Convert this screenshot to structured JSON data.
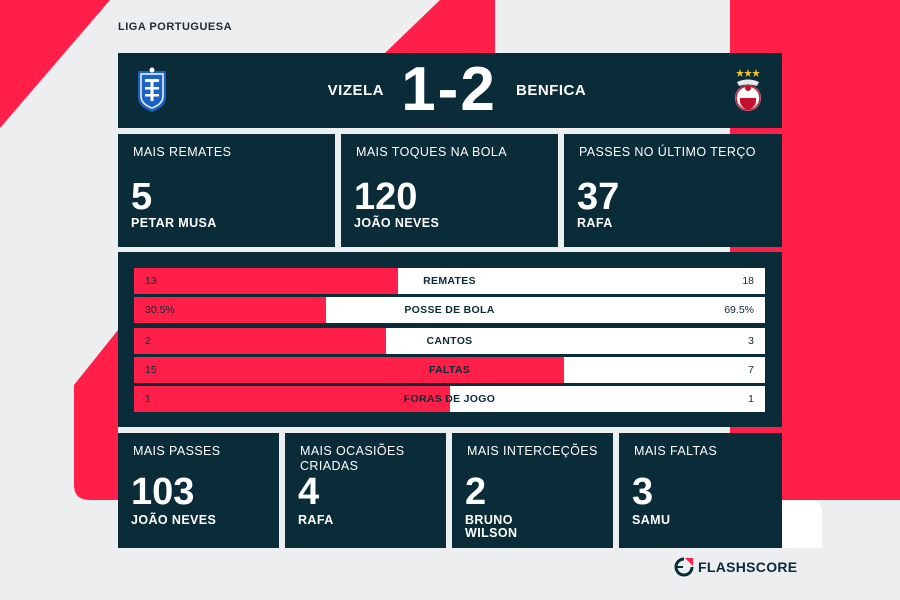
{
  "league": "LIGA PORTUGUESA",
  "match": {
    "home_team": "VIZELA",
    "away_team": "BENFICA",
    "score": "1-2"
  },
  "top_cards": [
    {
      "label": "MAIS REMATES",
      "value": "5",
      "player": "PETAR MUSA"
    },
    {
      "label": "MAIS TOQUES NA BOLA",
      "value": "120",
      "player": "JOÃO NEVES"
    },
    {
      "label": "PASSES NO ÚLTIMO TERÇO",
      "value": "37",
      "player": "RAFA"
    }
  ],
  "stats": [
    {
      "name": "REMATES",
      "home": "13",
      "away": "18",
      "home_share": 0.419
    },
    {
      "name": "POSSE DE BOLA",
      "home": "30.5%",
      "away": "69.5%",
      "home_share": 0.305
    },
    {
      "name": "CANTOS",
      "home": "2",
      "away": "3",
      "home_share": 0.4
    },
    {
      "name": "FALTAS",
      "home": "15",
      "away": "7",
      "home_share": 0.682
    },
    {
      "name": "FORAS DE JOGO",
      "home": "1",
      "away": "1",
      "home_share": 0.5
    }
  ],
  "bottom_cards": [
    {
      "label": "MAIS PASSES",
      "value": "103",
      "player": "JOÃO NEVES"
    },
    {
      "label": "MAIS OCASIÕES CRIADAS",
      "value": "4",
      "player": "RAFA"
    },
    {
      "label": "MAIS INTERCEÇÕES",
      "value": "2",
      "player": "BRUNO WILSON"
    },
    {
      "label": "MAIS FALTAS",
      "value": "3",
      "player": "SAMU"
    }
  ],
  "brand": "FLASHSCORE",
  "colors": {
    "accent": "#ff1f48",
    "panel": "#0a2b38",
    "background": "#eceef0"
  },
  "icons": {
    "home_crest": "vizela-crest-icon",
    "away_crest": "benfica-crest-icon",
    "brand_logo": "flashscore-logo-icon"
  }
}
